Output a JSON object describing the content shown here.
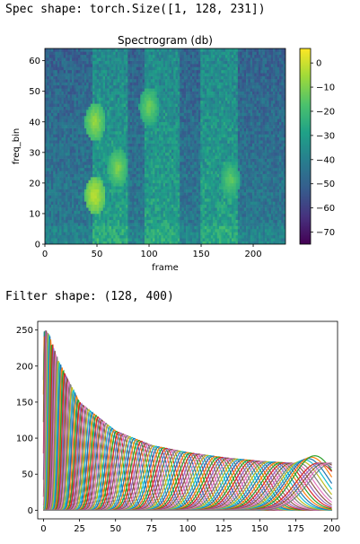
{
  "output": {
    "spec_line": "Spec shape: torch.Size([1, 128, 231])",
    "filter_line": "Filter shape: (128, 400)"
  },
  "chart_data": [
    {
      "type": "heatmap",
      "title": "Spectrogram (db)",
      "xlabel": "frame",
      "ylabel": "freq_bin",
      "xlim": [
        0,
        231
      ],
      "ylim": [
        0,
        64
      ],
      "xticks": [
        "0",
        "50",
        "100",
        "150",
        "200"
      ],
      "yticks": [
        "0",
        "10",
        "20",
        "30",
        "40",
        "50",
        "60"
      ],
      "colormap": "viridis",
      "colorbar": {
        "range": [
          -75,
          6
        ],
        "ticks": [
          "0",
          "−10",
          "−20",
          "−30",
          "−40",
          "−50",
          "−60",
          "−70"
        ]
      },
      "noted_features": {
        "speech_segments_frames": [
          [
            45,
            80
          ],
          [
            95,
            130
          ],
          [
            150,
            185
          ]
        ],
        "high_energy_regions": [
          {
            "frame": 48,
            "freq_bin": 16,
            "db": 0
          },
          {
            "frame": 48,
            "freq_bin": 40,
            "db": -5
          },
          {
            "frame": 70,
            "freq_bin": 25,
            "db": -8
          },
          {
            "frame": 100,
            "freq_bin": 45,
            "db": -10
          },
          {
            "frame": 178,
            "freq_bin": 21,
            "db": -12
          }
        ]
      }
    },
    {
      "type": "line",
      "title": "",
      "xlabel": "",
      "ylabel": "",
      "xlim": [
        -4,
        204
      ],
      "ylim": [
        -12,
        262
      ],
      "xticks": [
        "0",
        "25",
        "50",
        "75",
        "100",
        "125",
        "150",
        "175",
        "200"
      ],
      "yticks": [
        "0",
        "50",
        "100",
        "150",
        "200",
        "250"
      ],
      "series_count": 128,
      "series_description": "128 overlapping bell-shaped filter curves; centers spread from x≈0 to x≈200, peaks decreasing from ~250 near x=3 to ~65 near x=180, widths growing with x; last filters rise toward ~85 at x=200",
      "peak_envelope": {
        "x": [
          3,
          10,
          25,
          50,
          75,
          100,
          125,
          150,
          175,
          200
        ],
        "y": [
          250,
          210,
          150,
          110,
          90,
          80,
          73,
          68,
          65,
          85
        ]
      },
      "palette": [
        "#1f77b4",
        "#ff7f0e",
        "#2ca02c",
        "#d62728",
        "#9467bd",
        "#8c564b",
        "#e377c2",
        "#7f7f7f",
        "#bcbd22",
        "#17becf"
      ]
    }
  ]
}
